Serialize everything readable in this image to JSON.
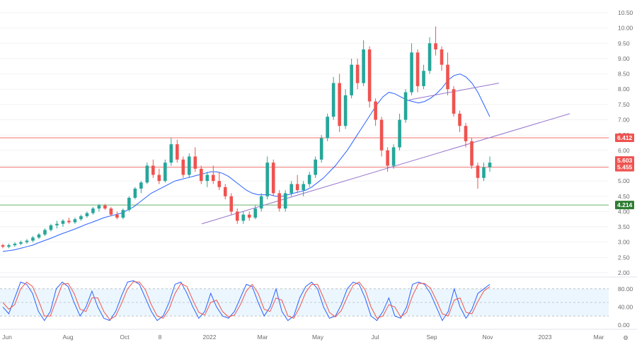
{
  "chart_data": [
    {
      "type": "candlestick",
      "title": "",
      "ylim": [
        2.0,
        10.5
      ],
      "y_ticks": [
        "10.50",
        "10.00",
        "9.50",
        "9.00",
        "8.50",
        "8.00",
        "7.50",
        "7.00",
        "6.50",
        "6.00",
        "5.50",
        "5.00",
        "4.50",
        "4.00",
        "3.50",
        "3.00",
        "2.50",
        "2.00"
      ],
      "x_ticks": [
        "Jun",
        "Aug",
        "Oct",
        "8",
        "2022",
        "Mar",
        "May",
        "Jul",
        "Sep",
        "Nov",
        "2023",
        "Mar"
      ],
      "horizontal_levels": [
        {
          "value": 6.412,
          "label": "6.412",
          "color": "#ef5350",
          "badge": "#ef5350"
        },
        {
          "value": 5.45,
          "label": "5.455",
          "color": "#ef5350",
          "badge": "#ef5350"
        },
        {
          "value": 4.214,
          "label": "4.214",
          "color": "#43a047",
          "badge": "#2e7d32"
        }
      ],
      "price_badges": [
        {
          "value": 5.6,
          "label": "5.603",
          "color": "#ef5350"
        }
      ],
      "trend_lines": [
        {
          "from": [
            "Dec",
            3.55
          ],
          "to": [
            "Feb 2023",
            7.1
          ],
          "color": "#9575cd"
        },
        {
          "from": [
            "Aug 2022",
            7.65
          ],
          "to": [
            "Nov 2022",
            8.2
          ],
          "color": "#9575cd"
        }
      ],
      "series": [
        {
          "name": "",
          "type": "candles",
          "up_color": "#26a69a",
          "down_color": "#ef5350",
          "values": [
            [
              2.9,
              2.95,
              2.8,
              2.85
            ],
            [
              2.85,
              2.95,
              2.8,
              2.9
            ],
            [
              2.9,
              3.0,
              2.85,
              2.95
            ],
            [
              2.95,
              3.05,
              2.9,
              3.0
            ],
            [
              3.0,
              3.1,
              2.95,
              3.05
            ],
            [
              3.05,
              3.2,
              3.0,
              3.15
            ],
            [
              3.15,
              3.3,
              3.1,
              3.25
            ],
            [
              3.25,
              3.45,
              3.2,
              3.4
            ],
            [
              3.4,
              3.6,
              3.35,
              3.55
            ],
            [
              3.55,
              3.7,
              3.45,
              3.6
            ],
            [
              3.6,
              3.75,
              3.5,
              3.7
            ],
            [
              3.7,
              3.8,
              3.6,
              3.65
            ],
            [
              3.65,
              3.8,
              3.6,
              3.75
            ],
            [
              3.75,
              3.9,
              3.7,
              3.85
            ],
            [
              3.85,
              4.0,
              3.8,
              3.95
            ],
            [
              3.95,
              4.15,
              3.9,
              4.1
            ],
            [
              4.1,
              4.25,
              4.0,
              4.2
            ],
            [
              4.2,
              4.25,
              4.05,
              4.1
            ],
            [
              4.1,
              4.15,
              3.85,
              3.9
            ],
            [
              3.9,
              4.0,
              3.75,
              3.8
            ],
            [
              3.8,
              4.1,
              3.75,
              4.05
            ],
            [
              4.05,
              4.5,
              4.0,
              4.45
            ],
            [
              4.45,
              4.8,
              4.4,
              4.75
            ],
            [
              4.75,
              5.0,
              4.6,
              4.95
            ],
            [
              4.95,
              5.6,
              4.9,
              5.5
            ],
            [
              5.5,
              5.7,
              5.1,
              5.2
            ],
            [
              5.2,
              5.4,
              4.9,
              5.0
            ],
            [
              5.0,
              5.7,
              4.95,
              5.6
            ],
            [
              5.6,
              6.4,
              5.5,
              6.2
            ],
            [
              6.2,
              6.35,
              5.6,
              5.7
            ],
            [
              5.7,
              5.8,
              5.1,
              5.2
            ],
            [
              5.2,
              5.9,
              5.1,
              5.8
            ],
            [
              5.8,
              6.1,
              5.3,
              5.4
            ],
            [
              5.4,
              5.5,
              4.9,
              5.0
            ],
            [
              5.0,
              5.3,
              4.8,
              5.2
            ],
            [
              5.2,
              5.5,
              4.9,
              5.0
            ],
            [
              5.0,
              5.3,
              4.7,
              4.8
            ],
            [
              4.8,
              4.9,
              4.4,
              4.5
            ],
            [
              4.5,
              4.6,
              3.9,
              4.0
            ],
            [
              4.0,
              4.1,
              3.6,
              3.7
            ],
            [
              3.7,
              4.0,
              3.6,
              3.9
            ],
            [
              3.9,
              4.0,
              3.7,
              3.8
            ],
            [
              3.8,
              4.2,
              3.75,
              4.1
            ],
            [
              4.1,
              4.6,
              4.0,
              4.5
            ],
            [
              4.5,
              5.8,
              4.4,
              5.6
            ],
            [
              5.6,
              5.7,
              4.5,
              4.6
            ],
            [
              4.6,
              4.7,
              4.0,
              4.1
            ],
            [
              4.1,
              4.7,
              4.0,
              4.6
            ],
            [
              4.6,
              5.0,
              4.5,
              4.9
            ],
            [
              4.9,
              5.2,
              4.6,
              4.7
            ],
            [
              4.7,
              5.0,
              4.5,
              4.9
            ],
            [
              4.9,
              5.3,
              4.8,
              5.2
            ],
            [
              5.2,
              5.8,
              5.1,
              5.7
            ],
            [
              5.7,
              6.5,
              5.6,
              6.4
            ],
            [
              6.4,
              7.2,
              6.3,
              7.1
            ],
            [
              7.1,
              8.4,
              7.0,
              8.2
            ],
            [
              8.2,
              8.5,
              6.6,
              6.8
            ],
            [
              6.8,
              8.0,
              6.7,
              7.8
            ],
            [
              7.8,
              9.0,
              7.7,
              8.8
            ],
            [
              8.8,
              9.0,
              8.0,
              8.2
            ],
            [
              8.2,
              9.6,
              8.1,
              9.3
            ],
            [
              9.3,
              9.4,
              7.4,
              7.6
            ],
            [
              7.6,
              7.7,
              6.8,
              7.0
            ],
            [
              7.0,
              7.1,
              5.8,
              6.0
            ],
            [
              6.0,
              6.1,
              5.3,
              5.5
            ],
            [
              5.5,
              6.2,
              5.4,
              6.1
            ],
            [
              6.1,
              7.2,
              6.0,
              7.0
            ],
            [
              7.0,
              8.0,
              6.9,
              7.9
            ],
            [
              7.9,
              9.5,
              7.8,
              9.2
            ],
            [
              9.2,
              9.3,
              7.9,
              8.1
            ],
            [
              8.1,
              8.8,
              8.0,
              8.6
            ],
            [
              8.6,
              9.7,
              8.5,
              9.5
            ],
            [
              9.5,
              10.05,
              9.1,
              9.3
            ],
            [
              9.3,
              9.4,
              8.6,
              8.8
            ],
            [
              8.8,
              9.2,
              7.8,
              8.0
            ],
            [
              8.0,
              8.1,
              7.1,
              7.2
            ],
            [
              7.2,
              7.3,
              6.6,
              6.8
            ],
            [
              6.8,
              6.9,
              6.1,
              6.3
            ],
            [
              6.3,
              6.4,
              5.4,
              5.5
            ],
            [
              5.5,
              5.6,
              4.75,
              5.1
            ],
            [
              5.1,
              5.6,
              5.0,
              5.45
            ],
            [
              5.45,
              5.8,
              5.3,
              5.6
            ]
          ]
        },
        {
          "name": "",
          "type": "moving_average",
          "color": "#2962ff",
          "values": [
            2.7,
            2.72,
            2.75,
            2.8,
            2.85,
            2.9,
            2.98,
            3.05,
            3.12,
            3.2,
            3.28,
            3.35,
            3.42,
            3.5,
            3.58,
            3.65,
            3.72,
            3.8,
            3.85,
            3.9,
            3.95,
            4.05,
            4.15,
            4.3,
            4.45,
            4.6,
            4.7,
            4.8,
            4.9,
            5.0,
            5.05,
            5.1,
            5.15,
            5.2,
            5.25,
            5.3,
            5.3,
            5.25,
            5.15,
            5.0,
            4.85,
            4.7,
            4.6,
            4.55,
            4.55,
            4.55,
            4.5,
            4.5,
            4.55,
            4.6,
            4.65,
            4.7,
            4.8,
            4.95,
            5.1,
            5.3,
            5.5,
            5.75,
            6.0,
            6.3,
            6.6,
            6.9,
            7.2,
            7.5,
            7.75,
            7.9,
            7.85,
            7.75,
            7.65,
            7.6,
            7.55,
            7.6,
            7.7,
            7.85,
            8.05,
            8.3,
            8.45,
            8.5,
            8.4,
            8.2,
            7.9,
            7.5,
            7.1
          ]
        }
      ]
    },
    {
      "type": "line",
      "title": "",
      "ylim": [
        0,
        100
      ],
      "y_ticks": [
        "80.00",
        "40.00",
        "0.00"
      ],
      "band": [
        20,
        80
      ],
      "series": [
        {
          "name": "",
          "color": "#2962ff",
          "values": [
            40,
            25,
            60,
            95,
            90,
            70,
            30,
            10,
            30,
            80,
            95,
            85,
            50,
            20,
            40,
            75,
            40,
            15,
            10,
            30,
            65,
            95,
            98,
            90,
            60,
            30,
            10,
            20,
            50,
            90,
            95,
            70,
            40,
            15,
            30,
            70,
            40,
            20,
            15,
            30,
            60,
            90,
            85,
            50,
            20,
            40,
            80,
            30,
            10,
            20,
            60,
            85,
            95,
            80,
            40,
            15,
            20,
            45,
            80,
            95,
            90,
            60,
            20,
            10,
            30,
            60,
            20,
            15,
            40,
            90,
            95,
            90,
            70,
            40,
            10,
            30,
            80,
            40,
            15,
            35,
            70,
            80,
            90
          ]
        },
        {
          "name": "",
          "color": "#ef5350",
          "values": [
            50,
            35,
            45,
            80,
            95,
            85,
            55,
            20,
            20,
            55,
            90,
            92,
            70,
            35,
            30,
            60,
            60,
            30,
            12,
            20,
            48,
            80,
            96,
            95,
            78,
            45,
            20,
            15,
            35,
            70,
            92,
            85,
            55,
            28,
            22,
            50,
            55,
            30,
            18,
            22,
            45,
            75,
            90,
            70,
            35,
            30,
            60,
            55,
            20,
            15,
            40,
            72,
            90,
            90,
            60,
            28,
            18,
            32,
            62,
            88,
            95,
            78,
            40,
            15,
            20,
            45,
            40,
            18,
            28,
            65,
            92,
            92,
            82,
            55,
            25,
            20,
            55,
            60,
            28,
            25,
            52,
            75,
            85
          ]
        }
      ]
    }
  ]
}
